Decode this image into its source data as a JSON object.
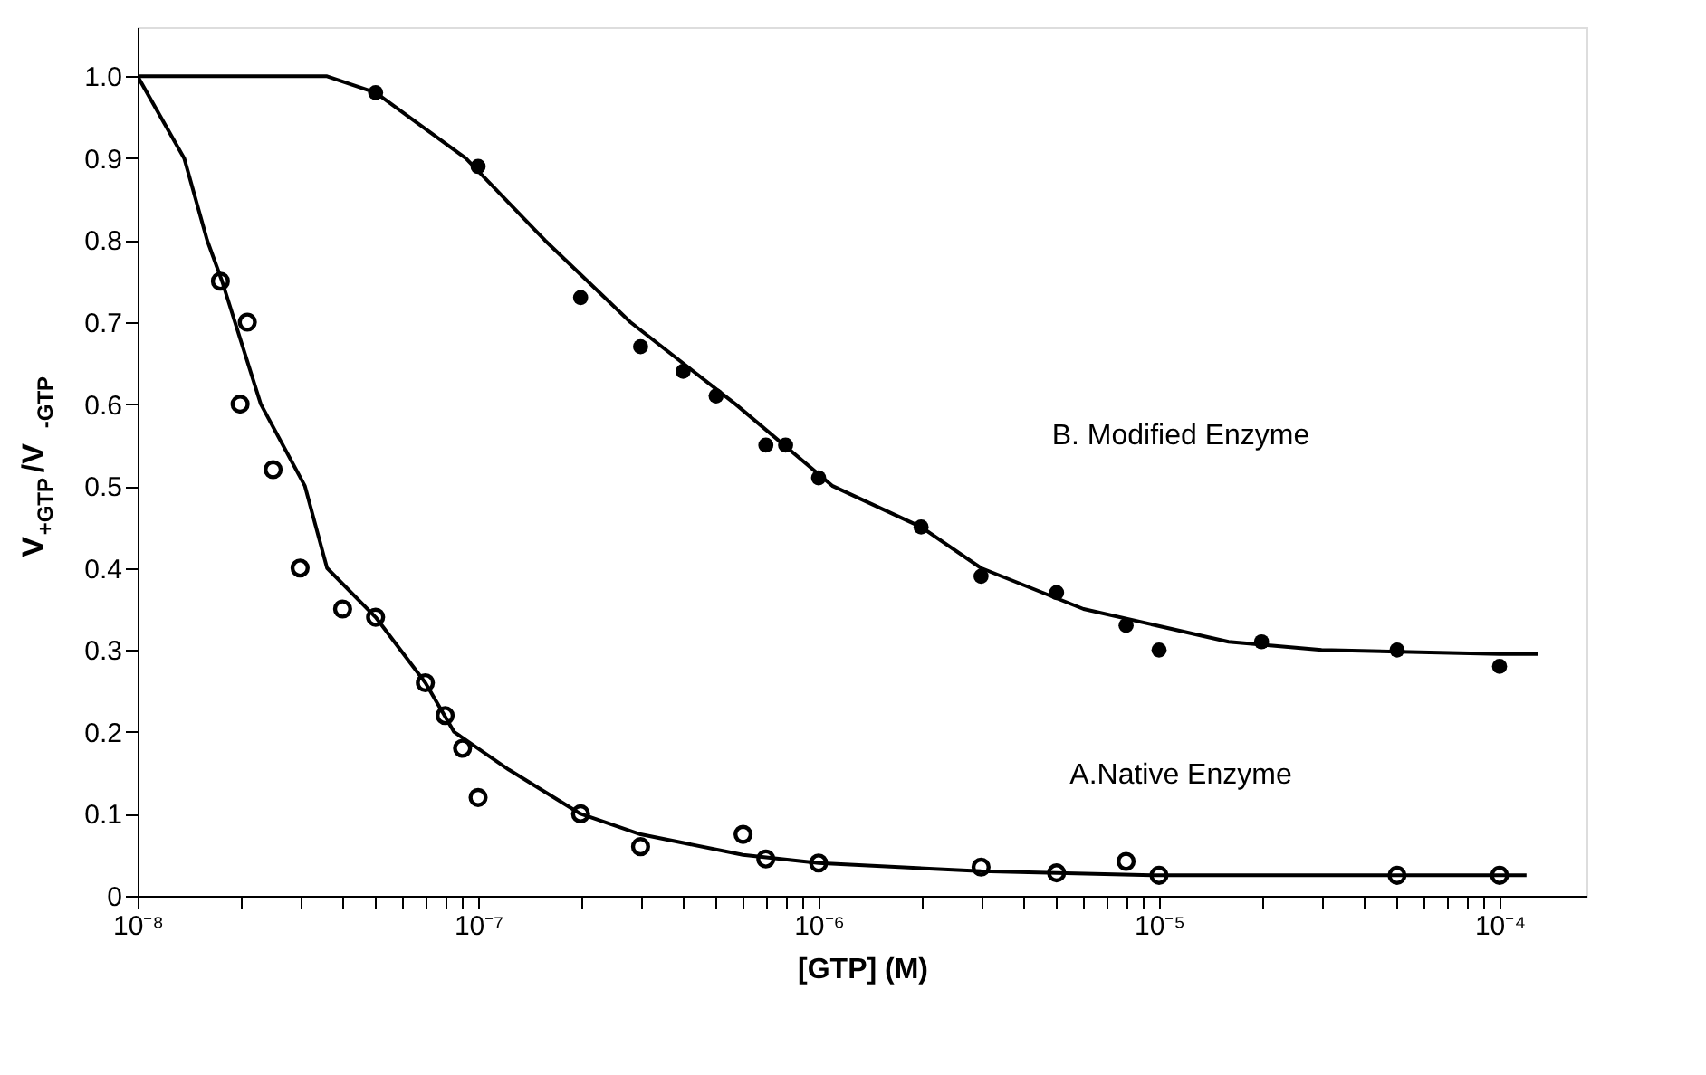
{
  "chart_data": {
    "type": "scatter",
    "xlabel": "[GTP] (M)",
    "ylabel": "V$_{+GTP}$/V$_{-GTP}$",
    "log": "x",
    "xlim": [
      1e-08,
      0.00018
    ],
    "ylim": [
      0,
      1.06
    ],
    "xticks": [
      {
        "value": 1e-08,
        "label": "10⁻⁸"
      },
      {
        "value": 2e-08,
        "label": null
      },
      {
        "value": 3e-08,
        "label": null
      },
      {
        "value": 4e-08,
        "label": null
      },
      {
        "value": 5e-08,
        "label": null
      },
      {
        "value": 6e-08,
        "label": null
      },
      {
        "value": 7e-08,
        "label": null
      },
      {
        "value": 8e-08,
        "label": null
      },
      {
        "value": 9e-08,
        "label": null
      },
      {
        "value": 1e-07,
        "label": "10⁻⁷"
      },
      {
        "value": 2e-07,
        "label": null
      },
      {
        "value": 3e-07,
        "label": null
      },
      {
        "value": 4e-07,
        "label": null
      },
      {
        "value": 5e-07,
        "label": null
      },
      {
        "value": 6e-07,
        "label": null
      },
      {
        "value": 7e-07,
        "label": null
      },
      {
        "value": 8e-07,
        "label": null
      },
      {
        "value": 9e-07,
        "label": null
      },
      {
        "value": 1e-06,
        "label": "10⁻⁶"
      },
      {
        "value": 2e-06,
        "label": null
      },
      {
        "value": 3e-06,
        "label": null
      },
      {
        "value": 4e-06,
        "label": null
      },
      {
        "value": 5e-06,
        "label": null
      },
      {
        "value": 6e-06,
        "label": null
      },
      {
        "value": 7e-06,
        "label": null
      },
      {
        "value": 8e-06,
        "label": null
      },
      {
        "value": 9e-06,
        "label": null
      },
      {
        "value": 1e-05,
        "label": "10⁻⁵"
      },
      {
        "value": 2e-05,
        "label": null
      },
      {
        "value": 3e-05,
        "label": null
      },
      {
        "value": 4e-05,
        "label": null
      },
      {
        "value": 5e-05,
        "label": null
      },
      {
        "value": 6e-05,
        "label": null
      },
      {
        "value": 7e-05,
        "label": null
      },
      {
        "value": 8e-05,
        "label": null
      },
      {
        "value": 9e-05,
        "label": null
      },
      {
        "value": 0.0001,
        "label": "10⁻⁴"
      }
    ],
    "yticks": [
      0,
      0.1,
      0.2,
      0.3,
      0.4,
      0.5,
      0.6,
      0.7,
      0.8,
      0.9,
      {
        "value": 1,
        "label": "1.0"
      }
    ],
    "grid": false,
    "marker": "circle",
    "series": [
      {
        "color": "#000000",
        "x": [
          5e-08,
          1e-07,
          2e-07,
          3e-07,
          4e-07,
          5e-07,
          7e-07,
          8e-07,
          1e-06,
          2e-06,
          3e-06,
          5e-06,
          8e-06,
          1e-05,
          2e-05,
          5e-05,
          0.0001
        ],
        "values": [
          0.98,
          0.89,
          0.73,
          0.67,
          0.64,
          0.61,
          0.55,
          0.55,
          0.51,
          0.45,
          0.39,
          0.37,
          0.33,
          0.3,
          0.31,
          0.3,
          0.28
        ]
      },
      {
        "color": "#000000",
        "x": [
          1.75e-08,
          2e-08,
          2.1e-08,
          2.5e-08,
          3e-08,
          4e-08,
          5e-08,
          7e-08,
          8e-08,
          9e-08,
          1e-07,
          2e-07,
          3e-07,
          6e-07,
          7e-07,
          1e-06,
          3e-06,
          5e-06,
          8e-06,
          1e-05,
          5e-05,
          0.0001
        ],
        "values": [
          0.75,
          0.6,
          0.7,
          0.52,
          0.4,
          0.35,
          0.34,
          0.26,
          0.22,
          0.18,
          0.12,
          0.1,
          0.06,
          0.075,
          0.045,
          0.04,
          0.035,
          0.028,
          0.042,
          0.025,
          0.025,
          0.025
        ]
      },
      {
        "type": "line",
        "color": "#000000",
        "line_style": "solid",
        "marker": "none",
        "x": [
          1e-08,
          3.6e-08,
          5e-08,
          9.2e-08,
          1.57e-07,
          2.8e-07,
          5.7e-07,
          1.1e-06,
          2e-06,
          3e-06,
          6e-06,
          1.6e-05,
          3e-05,
          0.0001,
          0.00013
        ],
        "values": [
          1.0,
          1.0,
          0.98,
          0.9,
          0.8,
          0.7,
          0.6,
          0.5,
          0.45,
          0.4,
          0.35,
          0.31,
          0.3,
          0.295,
          0.295
        ]
      },
      {
        "type": "line",
        "color": "#000000",
        "line_style": "solid",
        "marker": "none",
        "x": [
          1e-08,
          1.37e-08,
          1.6e-08,
          1.77e-08,
          2e-08,
          2.3e-08,
          3.1e-08,
          3.6e-08,
          5e-08,
          7e-08,
          8.5e-08,
          1.23e-07,
          2e-07,
          3e-07,
          6e-07,
          1e-06,
          3e-06,
          1e-05,
          0.00012
        ],
        "values": [
          1.0,
          0.9,
          0.8,
          0.75,
          0.68,
          0.6,
          0.5,
          0.4,
          0.34,
          0.26,
          0.2,
          0.154,
          0.1,
          0.075,
          0.05,
          0.04,
          0.03,
          0.025,
          0.025
        ]
      }
    ],
    "annotations": [
      "B. Modified Enzyme",
      "A.Native Enzyme"
    ]
  }
}
